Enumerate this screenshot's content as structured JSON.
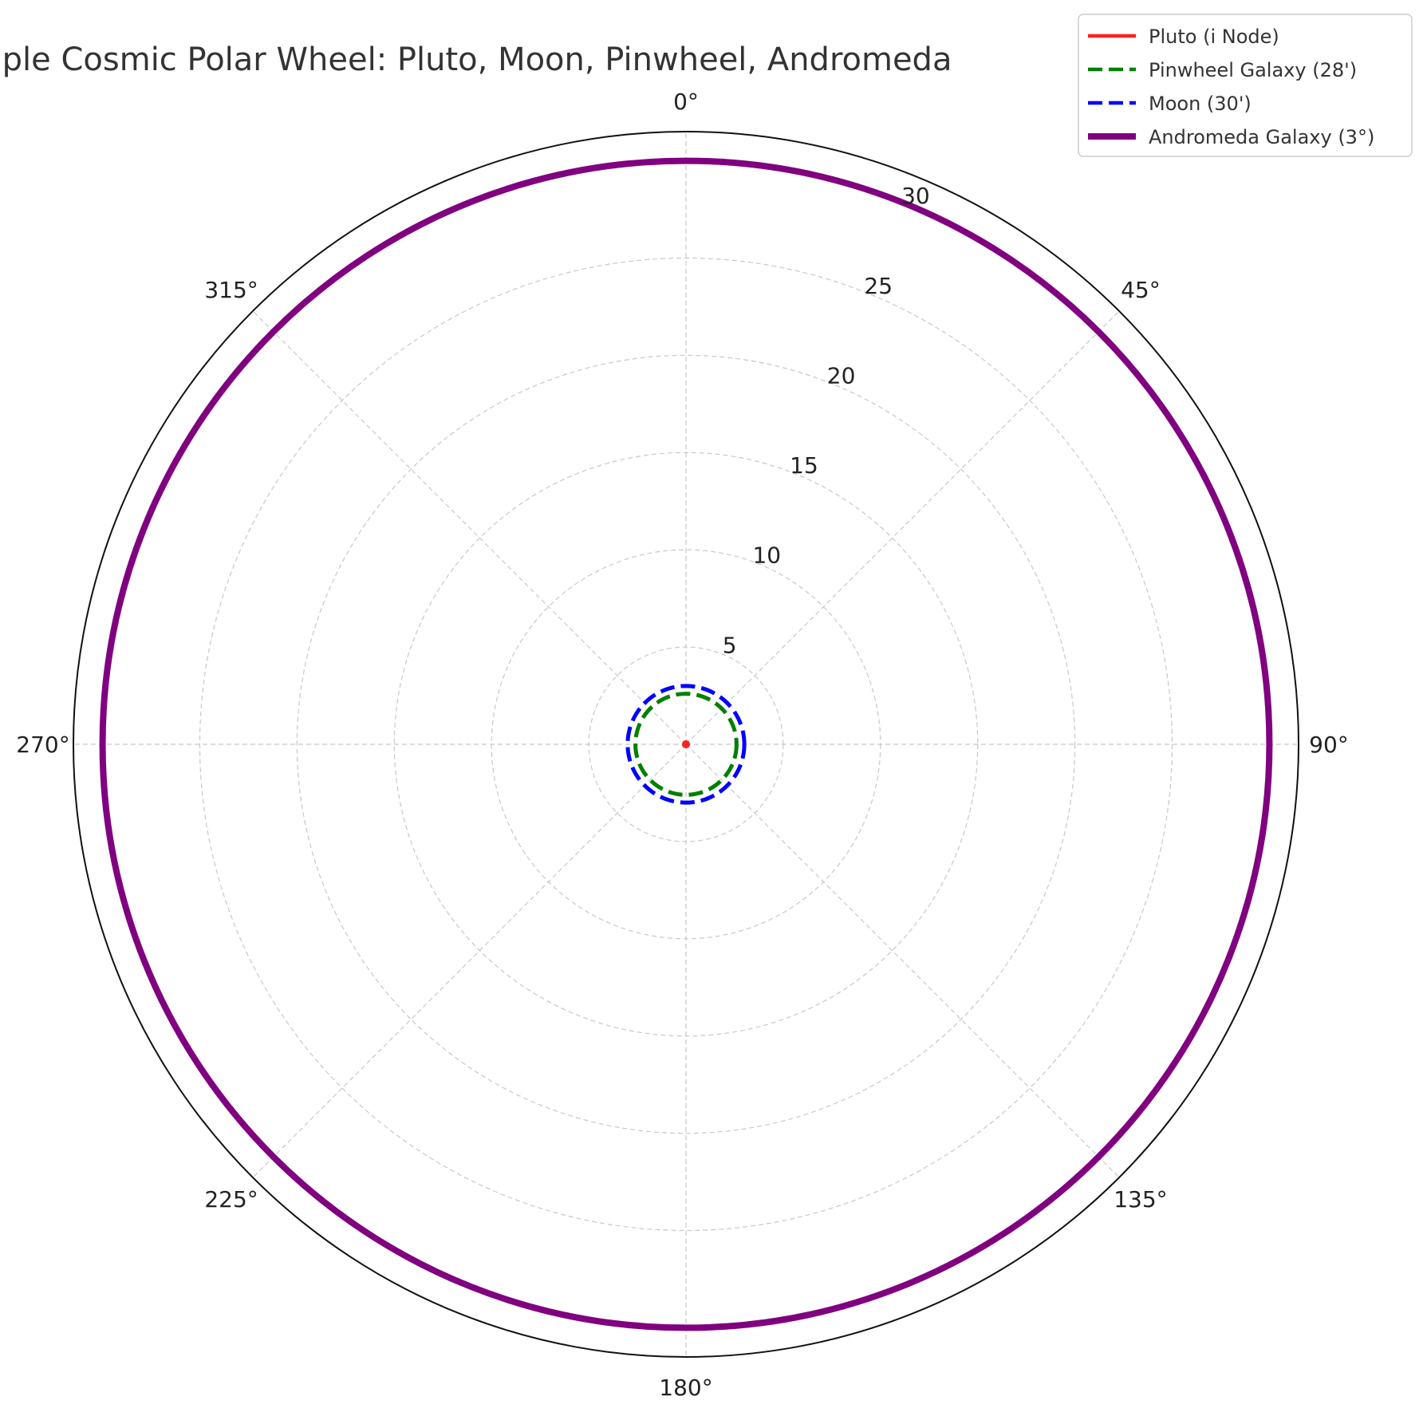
{
  "chart_data": {
    "type": "polar",
    "title": "Triple Cosmic Polar Wheel: Pluto, Moon, Pinwheel, Andromeda",
    "theta_direction": "clockwise",
    "theta_zero": "N",
    "theta_ticks": [
      0,
      45,
      90,
      135,
      180,
      225,
      270,
      315
    ],
    "theta_tick_labels": [
      "0°",
      "45°",
      "90°",
      "135°",
      "180°",
      "225°",
      "270°",
      "315°"
    ],
    "r_ticks": [
      5,
      10,
      15,
      20,
      25,
      30
    ],
    "r_tick_labels": [
      "5",
      "10",
      "15",
      "20",
      "25",
      "30"
    ],
    "rlim": [
      0,
      31.5
    ],
    "r_label_angle_deg": 22.5,
    "grid": true,
    "legend_position": "top-right",
    "series": [
      {
        "name": "Pluto (i Node)",
        "r": 0.1,
        "color": "#ff2020",
        "style": "solid",
        "marker": "dot"
      },
      {
        "name": "Pinwheel Galaxy (28')",
        "r": 2.6,
        "color": "#008000",
        "style": "dashed"
      },
      {
        "name": "Moon (30')",
        "r": 3.0,
        "color": "#0000ff",
        "style": "dashed"
      },
      {
        "name": "Andromeda Galaxy (3°)",
        "r": 30.0,
        "color": "#800080",
        "style": "solid"
      }
    ]
  }
}
